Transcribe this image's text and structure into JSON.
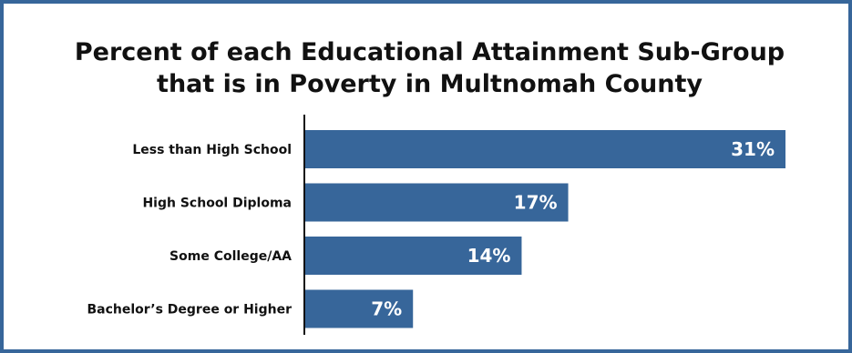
{
  "title": {
    "line1": "Percent of each Educational Attainment Sub-Group",
    "line2": "that is in Poverty in Multnomah County"
  },
  "colors": {
    "bar": "#37669a",
    "border": "#37669a",
    "axis": "#111111",
    "label": "#111111",
    "value_label": "#ffffff"
  },
  "chart_data": {
    "type": "bar",
    "orientation": "horizontal",
    "title": "Percent of each Educational Attainment Sub-Group that is in Poverty in Multnomah County",
    "xlabel": "",
    "ylabel": "",
    "categories": [
      "Less than High School",
      "High School Diploma",
      "Some College/AA",
      "Bachelor’s Degree or Higher"
    ],
    "values": [
      31,
      17,
      14,
      7
    ],
    "value_labels": [
      "31%",
      "17%",
      "14%",
      "7%"
    ],
    "unit": "%",
    "xlim": [
      0,
      31
    ],
    "grid": false,
    "legend": "none"
  }
}
